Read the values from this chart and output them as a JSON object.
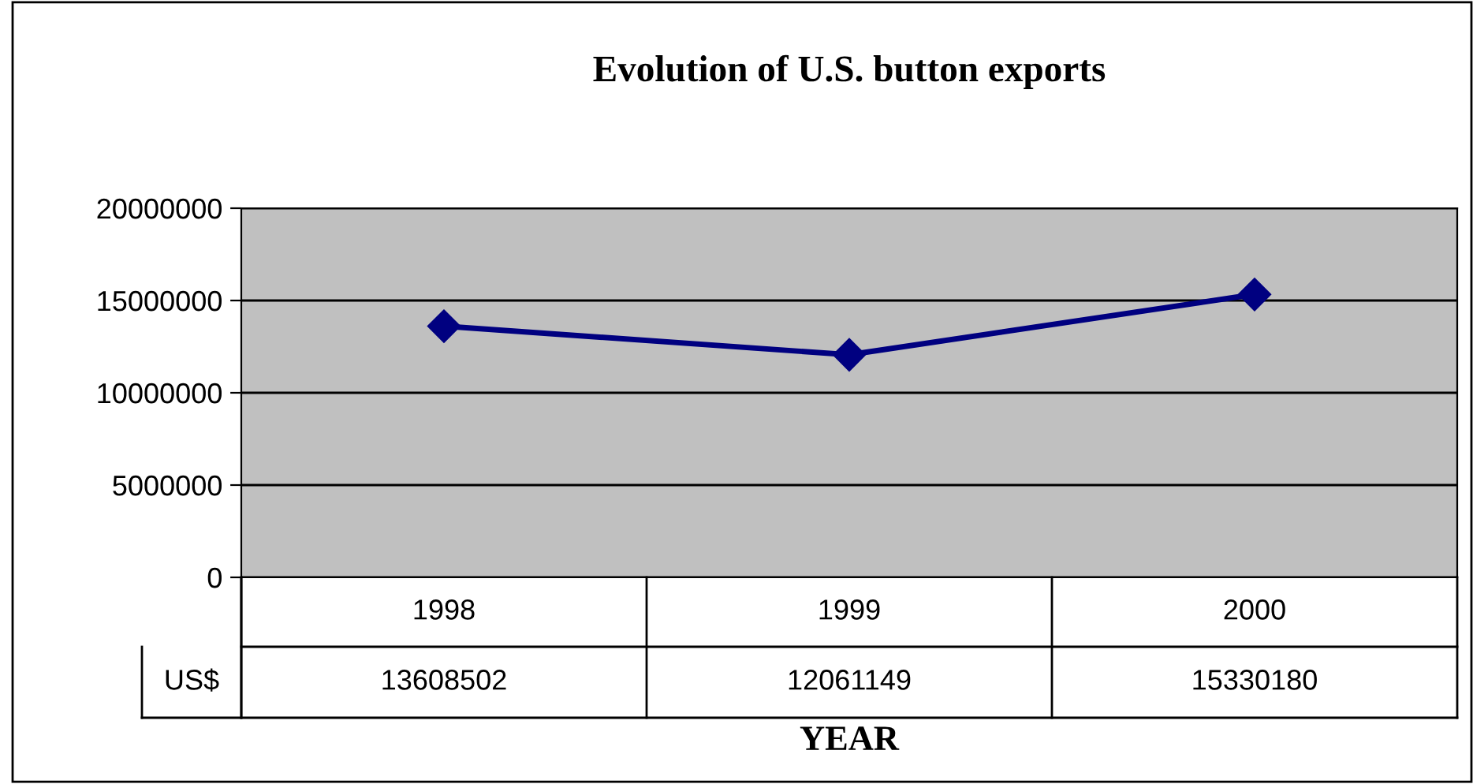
{
  "chart_data": {
    "type": "line",
    "title": "Evolution of U.S. button exports",
    "xlabel": "YEAR",
    "categories": [
      "1998",
      "1999",
      "2000"
    ],
    "series": [
      {
        "name": "US$",
        "color": "#000080",
        "values": [
          13608502,
          12061149,
          15330180
        ]
      }
    ],
    "ylim": [
      0,
      20000000
    ],
    "yticks": [
      0,
      5000000,
      10000000,
      15000000,
      20000000
    ],
    "grid": "y",
    "marker": "diamond",
    "line_style": "solid",
    "data_labels": true
  }
}
